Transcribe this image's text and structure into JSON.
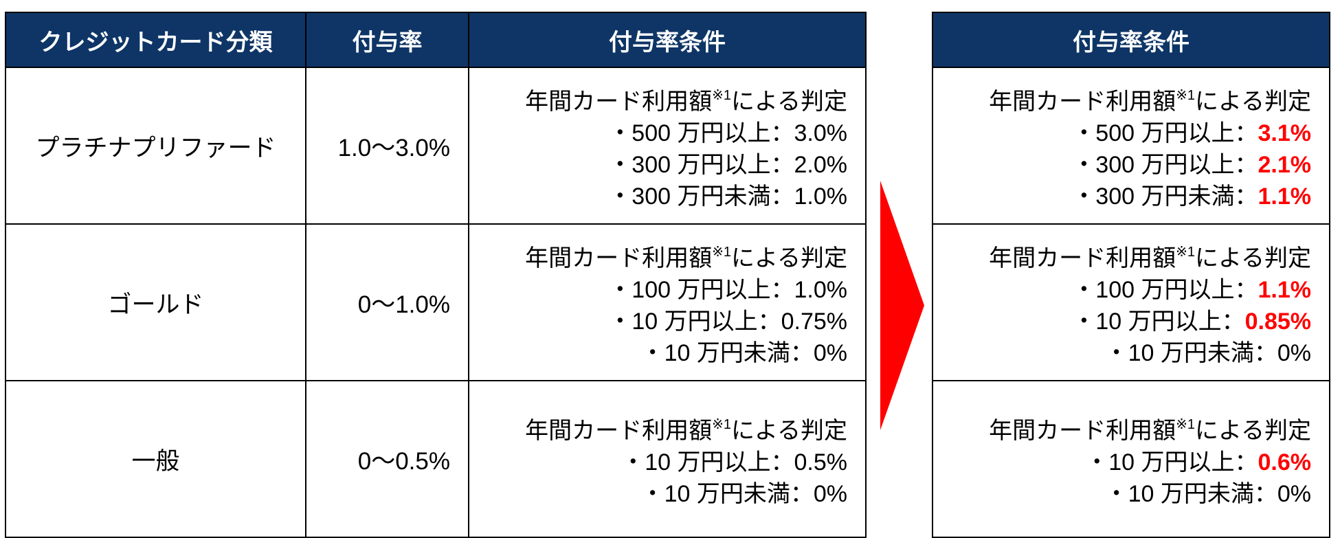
{
  "left_table": {
    "headers": [
      "クレジットカード分類",
      "付与率",
      "付与率条件"
    ],
    "rows": [
      {
        "category": "プラチナプリファード",
        "rate": "1.0〜3.0%",
        "condition_title": "年間カード利用額",
        "condition_note": "※1",
        "condition_suffix": "による判定",
        "lines": [
          {
            "label": "・500 万円以上：",
            "value": "3.0%"
          },
          {
            "label": "・300 万円以上：",
            "value": "2.0%"
          },
          {
            "label": "・300 万円未満：",
            "value": "1.0%"
          }
        ]
      },
      {
        "category": "ゴールド",
        "rate": "0〜1.0%",
        "condition_title": "年間カード利用額",
        "condition_note": "※1",
        "condition_suffix": "による判定",
        "lines": [
          {
            "label": "・100 万円以上：",
            "value": "1.0%"
          },
          {
            "label": "・10 万円以上：",
            "value": "0.75%"
          },
          {
            "label": "・10 万円未満：",
            "value": "0%"
          }
        ]
      },
      {
        "category": "一般",
        "rate": "0〜0.5%",
        "condition_title": "年間カード利用額",
        "condition_note": "※1",
        "condition_suffix": "による判定",
        "lines": [
          {
            "label": "・10 万円以上：",
            "value": "0.5%"
          },
          {
            "label": "・10 万円未満：",
            "value": "0%"
          }
        ]
      }
    ]
  },
  "right_table": {
    "header": "付与率条件",
    "rows": [
      {
        "condition_title": "年間カード利用額",
        "condition_note": "※1",
        "condition_suffix": "による判定",
        "lines": [
          {
            "label": "・500 万円以上：",
            "value": "3.1%"
          },
          {
            "label": "・300 万円以上：",
            "value": "2.1%"
          },
          {
            "label": "・300 万円未満：",
            "value": "1.1%"
          }
        ]
      },
      {
        "condition_title": "年間カード利用額",
        "condition_note": "※1",
        "condition_suffix": "による判定",
        "lines": [
          {
            "label": "・100 万円以上：",
            "value": "1.1%"
          },
          {
            "label": "・10 万円以上：",
            "value": "0.85%"
          },
          {
            "label": "・10 万円未満：",
            "value": "0%"
          }
        ]
      },
      {
        "condition_title": "年間カード利用額",
        "condition_note": "※1",
        "condition_suffix": "による判定",
        "lines": [
          {
            "label": "・10 万円以上：",
            "value": "0.6%"
          },
          {
            "label": "・10 万円未満：",
            "value": "0%"
          }
        ]
      }
    ]
  },
  "colors": {
    "header_bg": "#0e3566",
    "header_text": "#ffffff",
    "highlight": "#ff0000",
    "arrow": "#ff0000"
  },
  "icons": {
    "arrow": "right-arrow-icon"
  }
}
